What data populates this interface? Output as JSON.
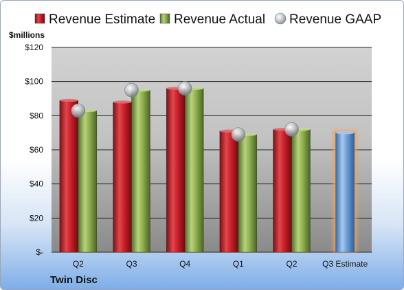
{
  "chart_data": {
    "type": "bar",
    "unit_label": "$millions",
    "footer_label": "Twin Disc",
    "categories": [
      "Q2",
      "Q3",
      "Q4",
      "Q1",
      "Q2",
      "Q3 Estimate"
    ],
    "series": [
      {
        "name": "Revenue Estimate",
        "kind": "bar",
        "color": "#c8202a",
        "values": [
          89,
          88,
          96,
          71,
          72,
          null
        ]
      },
      {
        "name": "Revenue Actual",
        "kind": "bar",
        "color": "#8fb050",
        "values": [
          83,
          95,
          96,
          69,
          72,
          null
        ]
      },
      {
        "name": "Revenue GAAP",
        "kind": "marker",
        "color": "#b8bcc4",
        "values": [
          83,
          95,
          96,
          69,
          72,
          null
        ]
      }
    ],
    "estimate_bar": {
      "category": "Q3 Estimate",
      "value": 70,
      "color": "#6f9fd8",
      "highlight": "#f0a35a"
    },
    "ylim": [
      0,
      120
    ],
    "yticks": [
      0,
      20,
      40,
      60,
      80,
      100,
      120
    ],
    "ytick_labels": [
      "$-",
      "$20",
      "$40",
      "$60",
      "$80",
      "$100",
      "$120"
    ],
    "grid": true,
    "legend_position": "top"
  }
}
